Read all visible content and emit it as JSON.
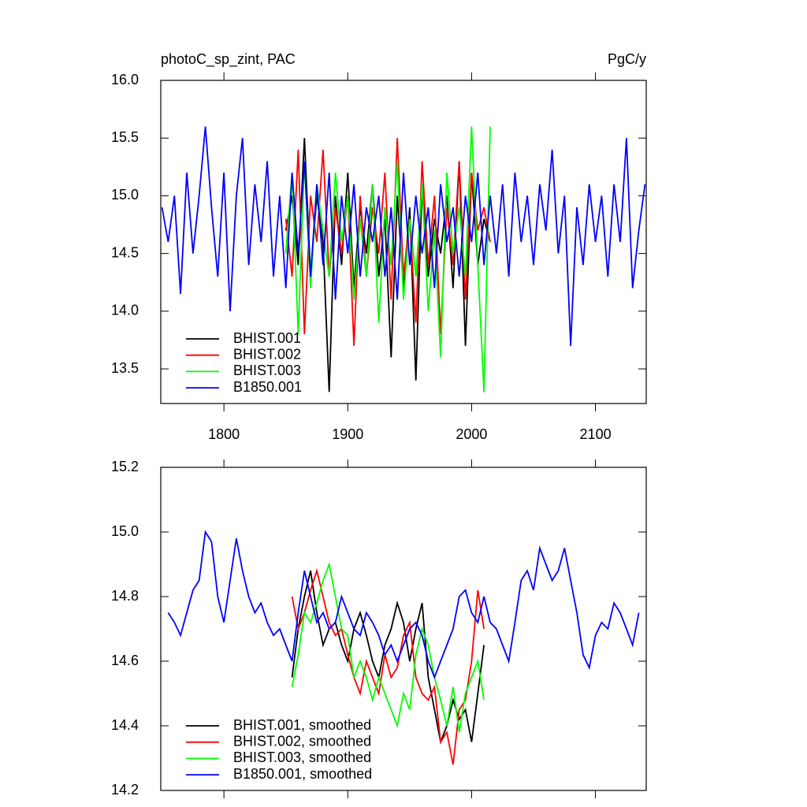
{
  "chart_data": [
    {
      "type": "line",
      "title": "photoC_sp_zint, PAC",
      "units": "PgC/y",
      "xlim": [
        1749,
        2141
      ],
      "xticks": [
        1800,
        1900,
        2000,
        2100
      ],
      "ylim": [
        13.2,
        16.0
      ],
      "yticks": [
        {
          "value": 13.5,
          "label": "13.5"
        },
        {
          "value": 14.0,
          "label": "14.0"
        },
        {
          "value": 14.5,
          "label": "14.5"
        },
        {
          "value": 15.0,
          "label": "15.0"
        },
        {
          "value": 15.5,
          "label": "15.5"
        },
        {
          "value": 16.0,
          "label": "16.0"
        }
      ],
      "legend": "lower left",
      "series": [
        {
          "name": "BHIST.001",
          "color": "#000000",
          "x": [
            1850,
            1855,
            1860,
            1865,
            1870,
            1875,
            1880,
            1885,
            1890,
            1895,
            1900,
            1905,
            1910,
            1915,
            1920,
            1925,
            1930,
            1935,
            1940,
            1945,
            1950,
            1955,
            1960,
            1965,
            1970,
            1975,
            1980,
            1985,
            1990,
            1995,
            2000,
            2005,
            2010,
            2015
          ],
          "values": [
            14.7,
            15.0,
            14.4,
            15.5,
            14.3,
            15.0,
            14.6,
            13.3,
            15.0,
            14.4,
            15.2,
            14.2,
            14.9,
            14.5,
            15.1,
            14.3,
            14.8,
            13.6,
            15.0,
            14.2,
            14.9,
            13.4,
            15.1,
            14.3,
            14.8,
            14.5,
            15.0,
            14.2,
            15.3,
            13.7,
            15.2,
            14.4,
            14.8,
            14.6
          ]
        },
        {
          "name": "BHIST.002",
          "color": "#ff0000",
          "x": [
            1850,
            1855,
            1860,
            1865,
            1870,
            1875,
            1880,
            1885,
            1890,
            1895,
            1900,
            1905,
            1910,
            1915,
            1920,
            1925,
            1930,
            1935,
            1940,
            1945,
            1950,
            1955,
            1960,
            1965,
            1970,
            1975,
            1980,
            1985,
            1990,
            1995,
            2000,
            2005,
            2010,
            2015
          ],
          "values": [
            14.8,
            14.3,
            15.4,
            13.8,
            15.0,
            14.6,
            15.4,
            14.3,
            14.9,
            14.5,
            15.0,
            13.7,
            15.0,
            14.3,
            14.9,
            14.5,
            15.2,
            14.1,
            15.5,
            14.3,
            14.8,
            13.9,
            15.3,
            14.4,
            15.0,
            13.8,
            14.9,
            14.4,
            15.3,
            14.1,
            15.2,
            14.7,
            14.9,
            14.6
          ]
        },
        {
          "name": "BHIST.003",
          "color": "#00ff00",
          "x": [
            1850,
            1855,
            1860,
            1865,
            1870,
            1875,
            1880,
            1885,
            1890,
            1895,
            1900,
            1905,
            1910,
            1915,
            1920,
            1925,
            1930,
            1935,
            1940,
            1945,
            1950,
            1955,
            1960,
            1965,
            1970,
            1975,
            1980,
            1985,
            1990,
            1995,
            2000,
            2005,
            2010,
            2015
          ],
          "values": [
            14.5,
            15.2,
            13.8,
            15.3,
            14.2,
            15.1,
            14.7,
            14.3,
            15.2,
            14.6,
            15.0,
            14.1,
            14.8,
            14.3,
            15.1,
            13.9,
            14.9,
            14.4,
            15.3,
            14.1,
            14.8,
            14.3,
            15.1,
            14.0,
            14.7,
            13.6,
            15.2,
            14.5,
            14.9,
            14.3,
            15.6,
            14.4,
            13.3,
            15.6
          ]
        },
        {
          "name": "B1850.001",
          "color": "#0000ff",
          "x": [
            1750,
            1755,
            1760,
            1765,
            1770,
            1775,
            1780,
            1785,
            1790,
            1795,
            1800,
            1805,
            1810,
            1815,
            1820,
            1825,
            1830,
            1835,
            1840,
            1845,
            1850,
            1855,
            1860,
            1865,
            1870,
            1875,
            1880,
            1885,
            1890,
            1895,
            1900,
            1905,
            1910,
            1915,
            1920,
            1925,
            1930,
            1935,
            1940,
            1945,
            1950,
            1955,
            1960,
            1965,
            1970,
            1975,
            1980,
            1985,
            1990,
            1995,
            2000,
            2005,
            2010,
            2015,
            2020,
            2025,
            2030,
            2035,
            2040,
            2045,
            2050,
            2055,
            2060,
            2065,
            2070,
            2075,
            2080,
            2085,
            2090,
            2095,
            2100,
            2105,
            2110,
            2115,
            2120,
            2125,
            2130,
            2135,
            2140
          ],
          "values": [
            14.9,
            14.6,
            15.0,
            14.15,
            15.2,
            14.5,
            15.0,
            15.6,
            14.9,
            14.3,
            15.2,
            14.0,
            15.0,
            15.5,
            14.4,
            15.1,
            14.6,
            15.3,
            14.3,
            15.0,
            14.2,
            15.2,
            14.5,
            15.3,
            14.3,
            15.1,
            14.4,
            15.2,
            14.1,
            15.0,
            14.5,
            15.1,
            14.3,
            14.9,
            14.6,
            15.0,
            14.3,
            14.9,
            14.1,
            15.2,
            14.4,
            15.0,
            14.5,
            14.9,
            14.2,
            15.1,
            14.6,
            14.9,
            14.3,
            15.0,
            14.6,
            15.2,
            14.4,
            15.0,
            14.5,
            15.1,
            14.3,
            15.2,
            14.6,
            15.0,
            14.4,
            15.1,
            14.7,
            15.4,
            14.5,
            15.0,
            13.7,
            14.9,
            14.4,
            15.1,
            14.6,
            15.0,
            14.3,
            15.1,
            14.6,
            15.5,
            14.2,
            14.7,
            15.1
          ]
        }
      ]
    },
    {
      "type": "line",
      "xlim": [
        1749,
        2141
      ],
      "xticks": [
        1800,
        1900,
        2000,
        2100
      ],
      "ylim": [
        14.2,
        15.2
      ],
      "yticks": [
        {
          "value": 14.2,
          "label": "14.2"
        },
        {
          "value": 14.4,
          "label": "14.4"
        },
        {
          "value": 14.6,
          "label": "14.6"
        },
        {
          "value": 14.8,
          "label": "14.8"
        },
        {
          "value": 15.0,
          "label": "15.0"
        },
        {
          "value": 15.2,
          "label": "15.2"
        }
      ],
      "legend": "lower left",
      "series": [
        {
          "name": "BHIST.001, smoothed",
          "color": "#000000",
          "x": [
            1855,
            1860,
            1865,
            1870,
            1875,
            1880,
            1885,
            1890,
            1895,
            1900,
            1905,
            1910,
            1915,
            1920,
            1925,
            1930,
            1935,
            1940,
            1945,
            1950,
            1955,
            1960,
            1965,
            1970,
            1975,
            1980,
            1985,
            1990,
            1995,
            2000,
            2005,
            2010
          ],
          "values": [
            14.55,
            14.7,
            14.8,
            14.88,
            14.75,
            14.65,
            14.7,
            14.72,
            14.65,
            14.6,
            14.7,
            14.75,
            14.68,
            14.6,
            14.55,
            14.65,
            14.7,
            14.78,
            14.72,
            14.6,
            14.7,
            14.78,
            14.55,
            14.45,
            14.35,
            14.4,
            14.48,
            14.42,
            14.45,
            14.35,
            14.5,
            14.65
          ]
        },
        {
          "name": "BHIST.002, smoothed",
          "color": "#ff0000",
          "x": [
            1855,
            1860,
            1865,
            1870,
            1875,
            1880,
            1885,
            1890,
            1895,
            1900,
            1905,
            1910,
            1915,
            1920,
            1925,
            1930,
            1935,
            1940,
            1945,
            1950,
            1955,
            1960,
            1965,
            1970,
            1975,
            1980,
            1985,
            1990,
            1995,
            2000,
            2005,
            2010
          ],
          "values": [
            14.8,
            14.7,
            14.75,
            14.82,
            14.88,
            14.8,
            14.72,
            14.68,
            14.7,
            14.62,
            14.55,
            14.5,
            14.6,
            14.55,
            14.5,
            14.62,
            14.55,
            14.58,
            14.68,
            14.72,
            14.55,
            14.5,
            14.48,
            14.52,
            14.35,
            14.38,
            14.28,
            14.45,
            14.48,
            14.6,
            14.82,
            14.7
          ]
        },
        {
          "name": "BHIST.003, smoothed",
          "color": "#00ff00",
          "x": [
            1855,
            1860,
            1865,
            1870,
            1875,
            1880,
            1885,
            1890,
            1895,
            1900,
            1905,
            1910,
            1915,
            1920,
            1925,
            1930,
            1935,
            1940,
            1945,
            1950,
            1955,
            1960,
            1965,
            1970,
            1975,
            1980,
            1985,
            1990,
            1995,
            2000,
            2005,
            2010
          ],
          "values": [
            14.52,
            14.62,
            14.75,
            14.72,
            14.78,
            14.85,
            14.9,
            14.8,
            14.7,
            14.68,
            14.55,
            14.6,
            14.55,
            14.48,
            14.55,
            14.5,
            14.45,
            14.4,
            14.5,
            14.45,
            14.62,
            14.7,
            14.65,
            14.55,
            14.48,
            14.4,
            14.52,
            14.38,
            14.5,
            14.55,
            14.6,
            14.48
          ]
        },
        {
          "name": "B1850.001, smoothed",
          "color": "#0000ff",
          "x": [
            1755,
            1760,
            1765,
            1770,
            1775,
            1780,
            1785,
            1790,
            1795,
            1800,
            1805,
            1810,
            1815,
            1820,
            1825,
            1830,
            1835,
            1840,
            1845,
            1850,
            1855,
            1860,
            1865,
            1870,
            1875,
            1880,
            1885,
            1890,
            1895,
            1900,
            1905,
            1910,
            1915,
            1920,
            1925,
            1930,
            1935,
            1940,
            1945,
            1950,
            1955,
            1960,
            1965,
            1970,
            1975,
            1980,
            1985,
            1990,
            1995,
            2000,
            2005,
            2010,
            2015,
            2020,
            2025,
            2030,
            2035,
            2040,
            2045,
            2050,
            2055,
            2060,
            2065,
            2070,
            2075,
            2080,
            2085,
            2090,
            2095,
            2100,
            2105,
            2110,
            2115,
            2120,
            2125,
            2130,
            2135
          ],
          "values": [
            14.75,
            14.72,
            14.68,
            14.75,
            14.82,
            14.85,
            15.0,
            14.97,
            14.8,
            14.72,
            14.85,
            14.98,
            14.88,
            14.8,
            14.75,
            14.78,
            14.72,
            14.68,
            14.7,
            14.65,
            14.6,
            14.75,
            14.88,
            14.8,
            14.72,
            14.75,
            14.7,
            14.72,
            14.8,
            14.75,
            14.7,
            14.68,
            14.75,
            14.72,
            14.68,
            14.62,
            14.65,
            14.6,
            14.65,
            14.7,
            14.72,
            14.68,
            14.6,
            14.55,
            14.6,
            14.65,
            14.7,
            14.8,
            14.82,
            14.75,
            14.72,
            14.8,
            14.72,
            14.7,
            14.65,
            14.6,
            14.72,
            14.85,
            14.88,
            14.82,
            14.95,
            14.9,
            14.85,
            14.88,
            14.95,
            14.85,
            14.75,
            14.62,
            14.58,
            14.68,
            14.72,
            14.7,
            14.78,
            14.75,
            14.7,
            14.65,
            14.75
          ]
        }
      ]
    }
  ]
}
